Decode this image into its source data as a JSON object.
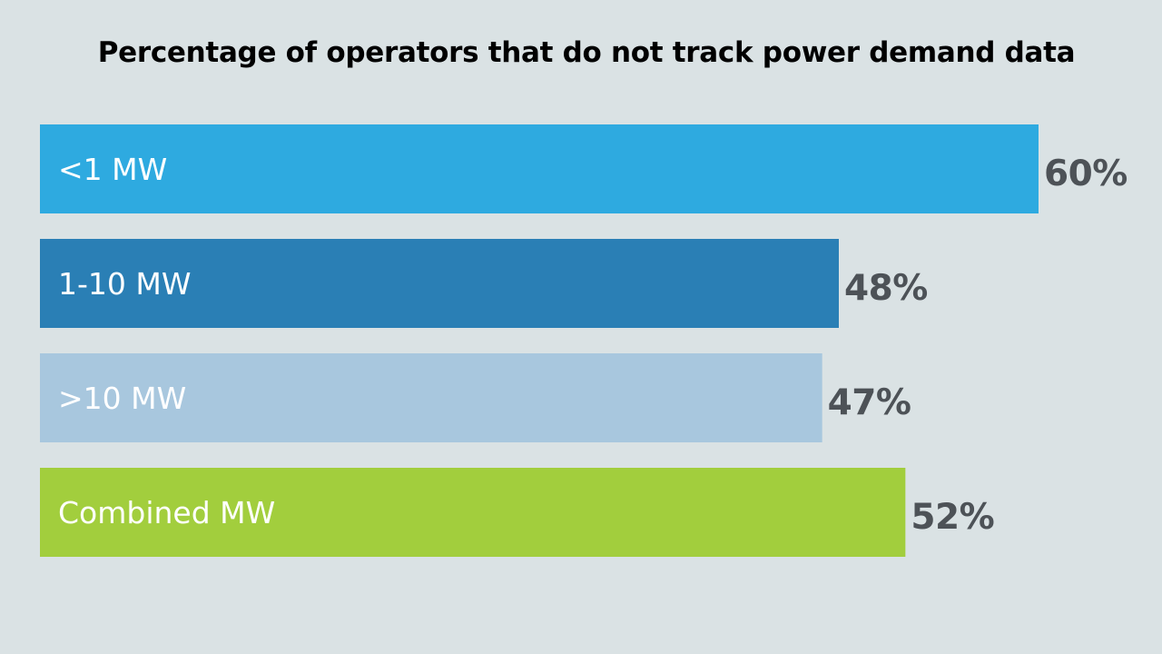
{
  "chart_data": {
    "type": "bar",
    "orientation": "horizontal",
    "title": "Percentage of operators that do not track power demand data",
    "xlabel": "",
    "ylabel": "",
    "xlim": [
      0,
      60
    ],
    "grid": false,
    "legend": "none",
    "categories": [
      "<1 MW",
      "1-10 MW",
      ">10 MW",
      "Combined MW"
    ],
    "values": [
      60,
      48,
      47,
      52
    ],
    "value_labels": [
      "60%",
      "48%",
      "47%",
      "52%"
    ],
    "colors": [
      "#2eaae0",
      "#2a7fb5",
      "#a8c7de",
      "#a2ce3d"
    ]
  }
}
